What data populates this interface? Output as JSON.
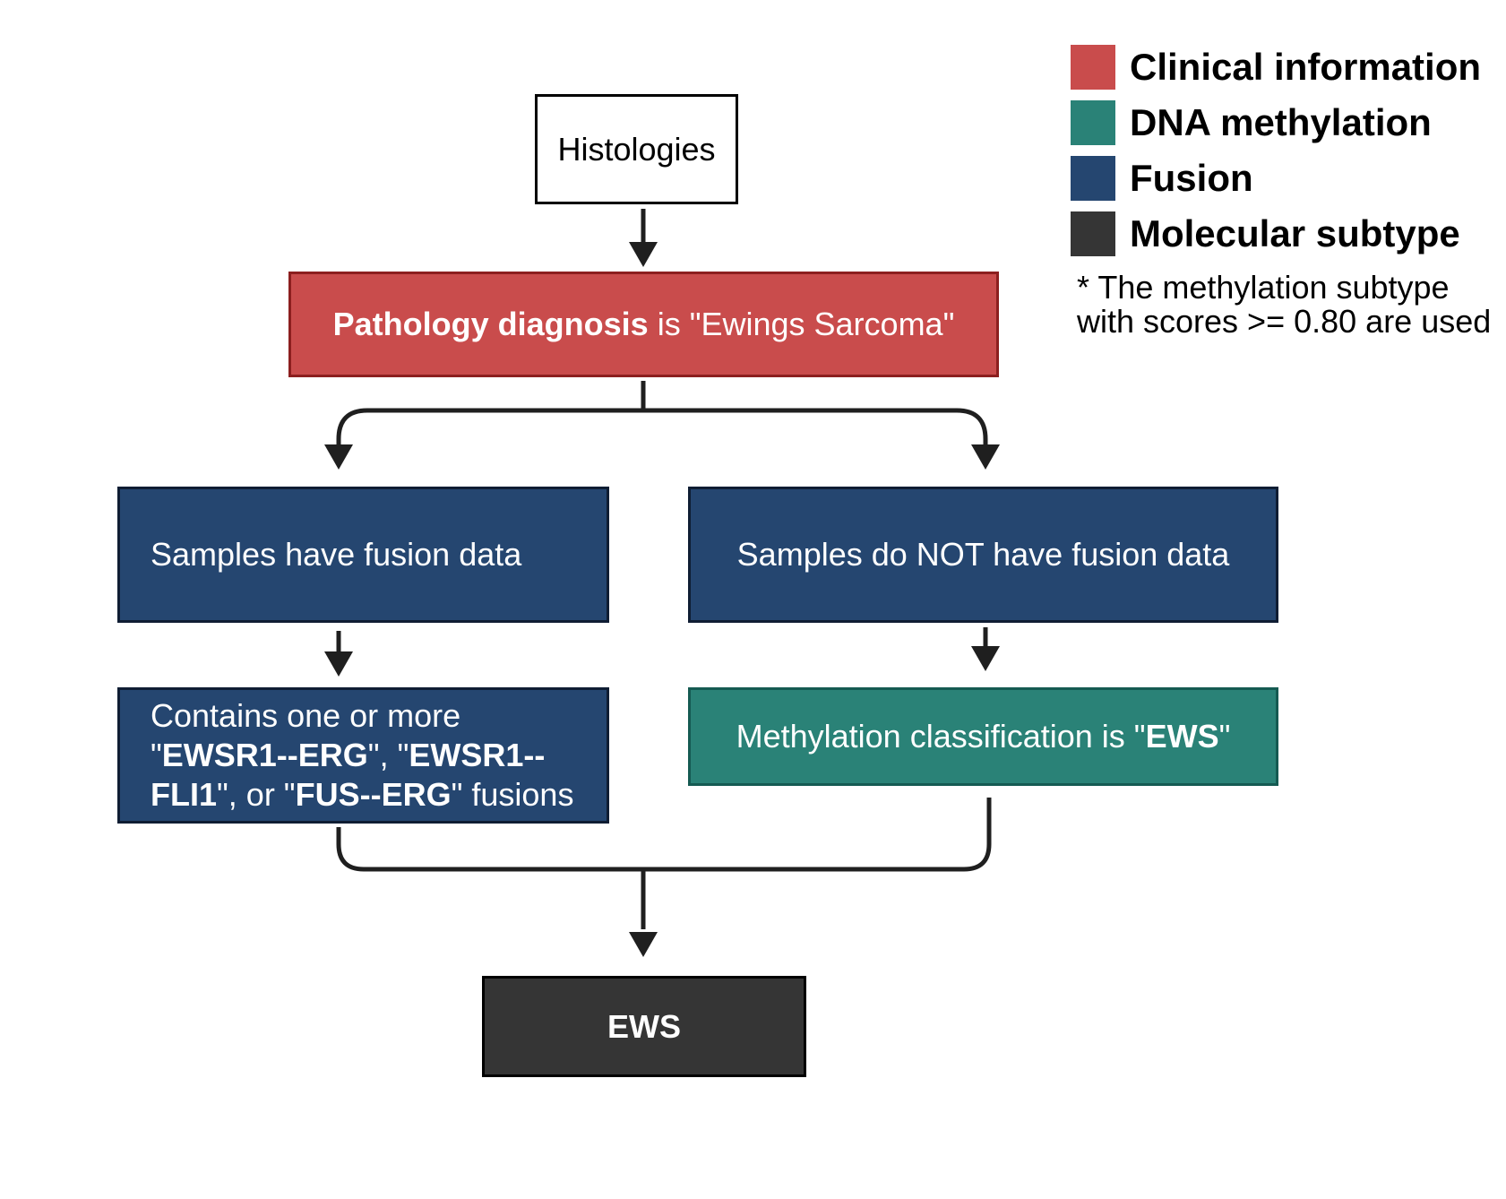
{
  "colors": {
    "clinical": "#c94c4c",
    "methylation": "#2a8277",
    "fusion": "#254670",
    "subtype": "#353535",
    "arrow": "#1f1f1f"
  },
  "nodes": {
    "histologies": {
      "text": "Histologies"
    },
    "pathology": {
      "bold": "Pathology diagnosis",
      "rest": " is \"Ewings Sarcoma\""
    },
    "has_fusion": {
      "text": "Samples have fusion data"
    },
    "no_fusion": {
      "text": "Samples do NOT have fusion data"
    },
    "fusions": {
      "line1": "Contains one or more",
      "q1": "\"",
      "f1": "EWSR1--ERG",
      "sep1": "\", \"",
      "f2": "EWSR1--FLI1",
      "sep2": "\", or \"",
      "f3": "FUS--ERG",
      "tail": "\" fusions"
    },
    "methylation": {
      "text": "Methylation classification is \"",
      "bold": "EWS",
      "close": "\""
    },
    "ews": {
      "text": "EWS"
    }
  },
  "legend": [
    {
      "label": "Clinical information",
      "color": "#c94c4c"
    },
    {
      "label": "DNA methylation",
      "color": "#2a8277"
    },
    {
      "label": "Fusion",
      "color": "#254670"
    },
    {
      "label": "Molecular subtype",
      "color": "#353535"
    }
  ],
  "note": {
    "line1": "* The methylation subtype",
    "line2": "with scores >= 0.80 are used"
  }
}
